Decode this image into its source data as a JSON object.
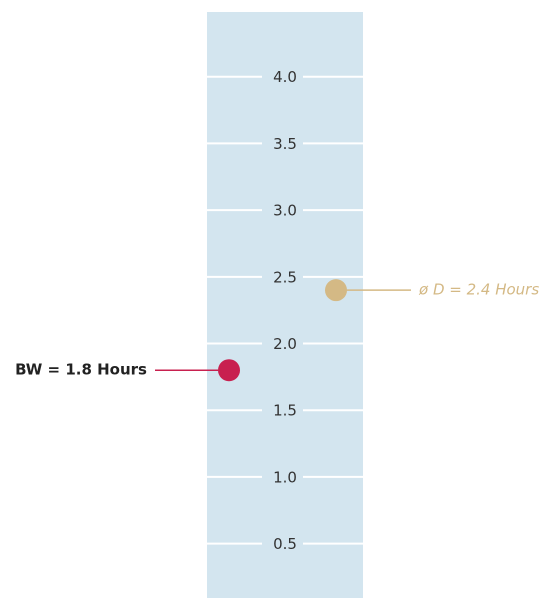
{
  "chart_data": {
    "type": "dot",
    "series": [
      {
        "name": "BW = 1.8 Hours",
        "color": "#c8204f",
        "values": [
          1.8
        ]
      },
      {
        "name": "ø D = 2.4 Hours",
        "color": "#d4b985",
        "values": [
          2.4
        ]
      }
    ],
    "ylim": [
      0.1,
      4.5
    ],
    "yticks": [
      0.5,
      {
        "value": 1,
        "label": "1.0"
      },
      1.5,
      {
        "value": 2,
        "label": "2.0"
      },
      2.5,
      {
        "value": 3,
        "label": "3.0"
      },
      3.5,
      {
        "value": 4,
        "label": "4.0"
      }
    ],
    "grid": true,
    "background": "#d3e5ef",
    "grid_color": "#ffffff"
  }
}
